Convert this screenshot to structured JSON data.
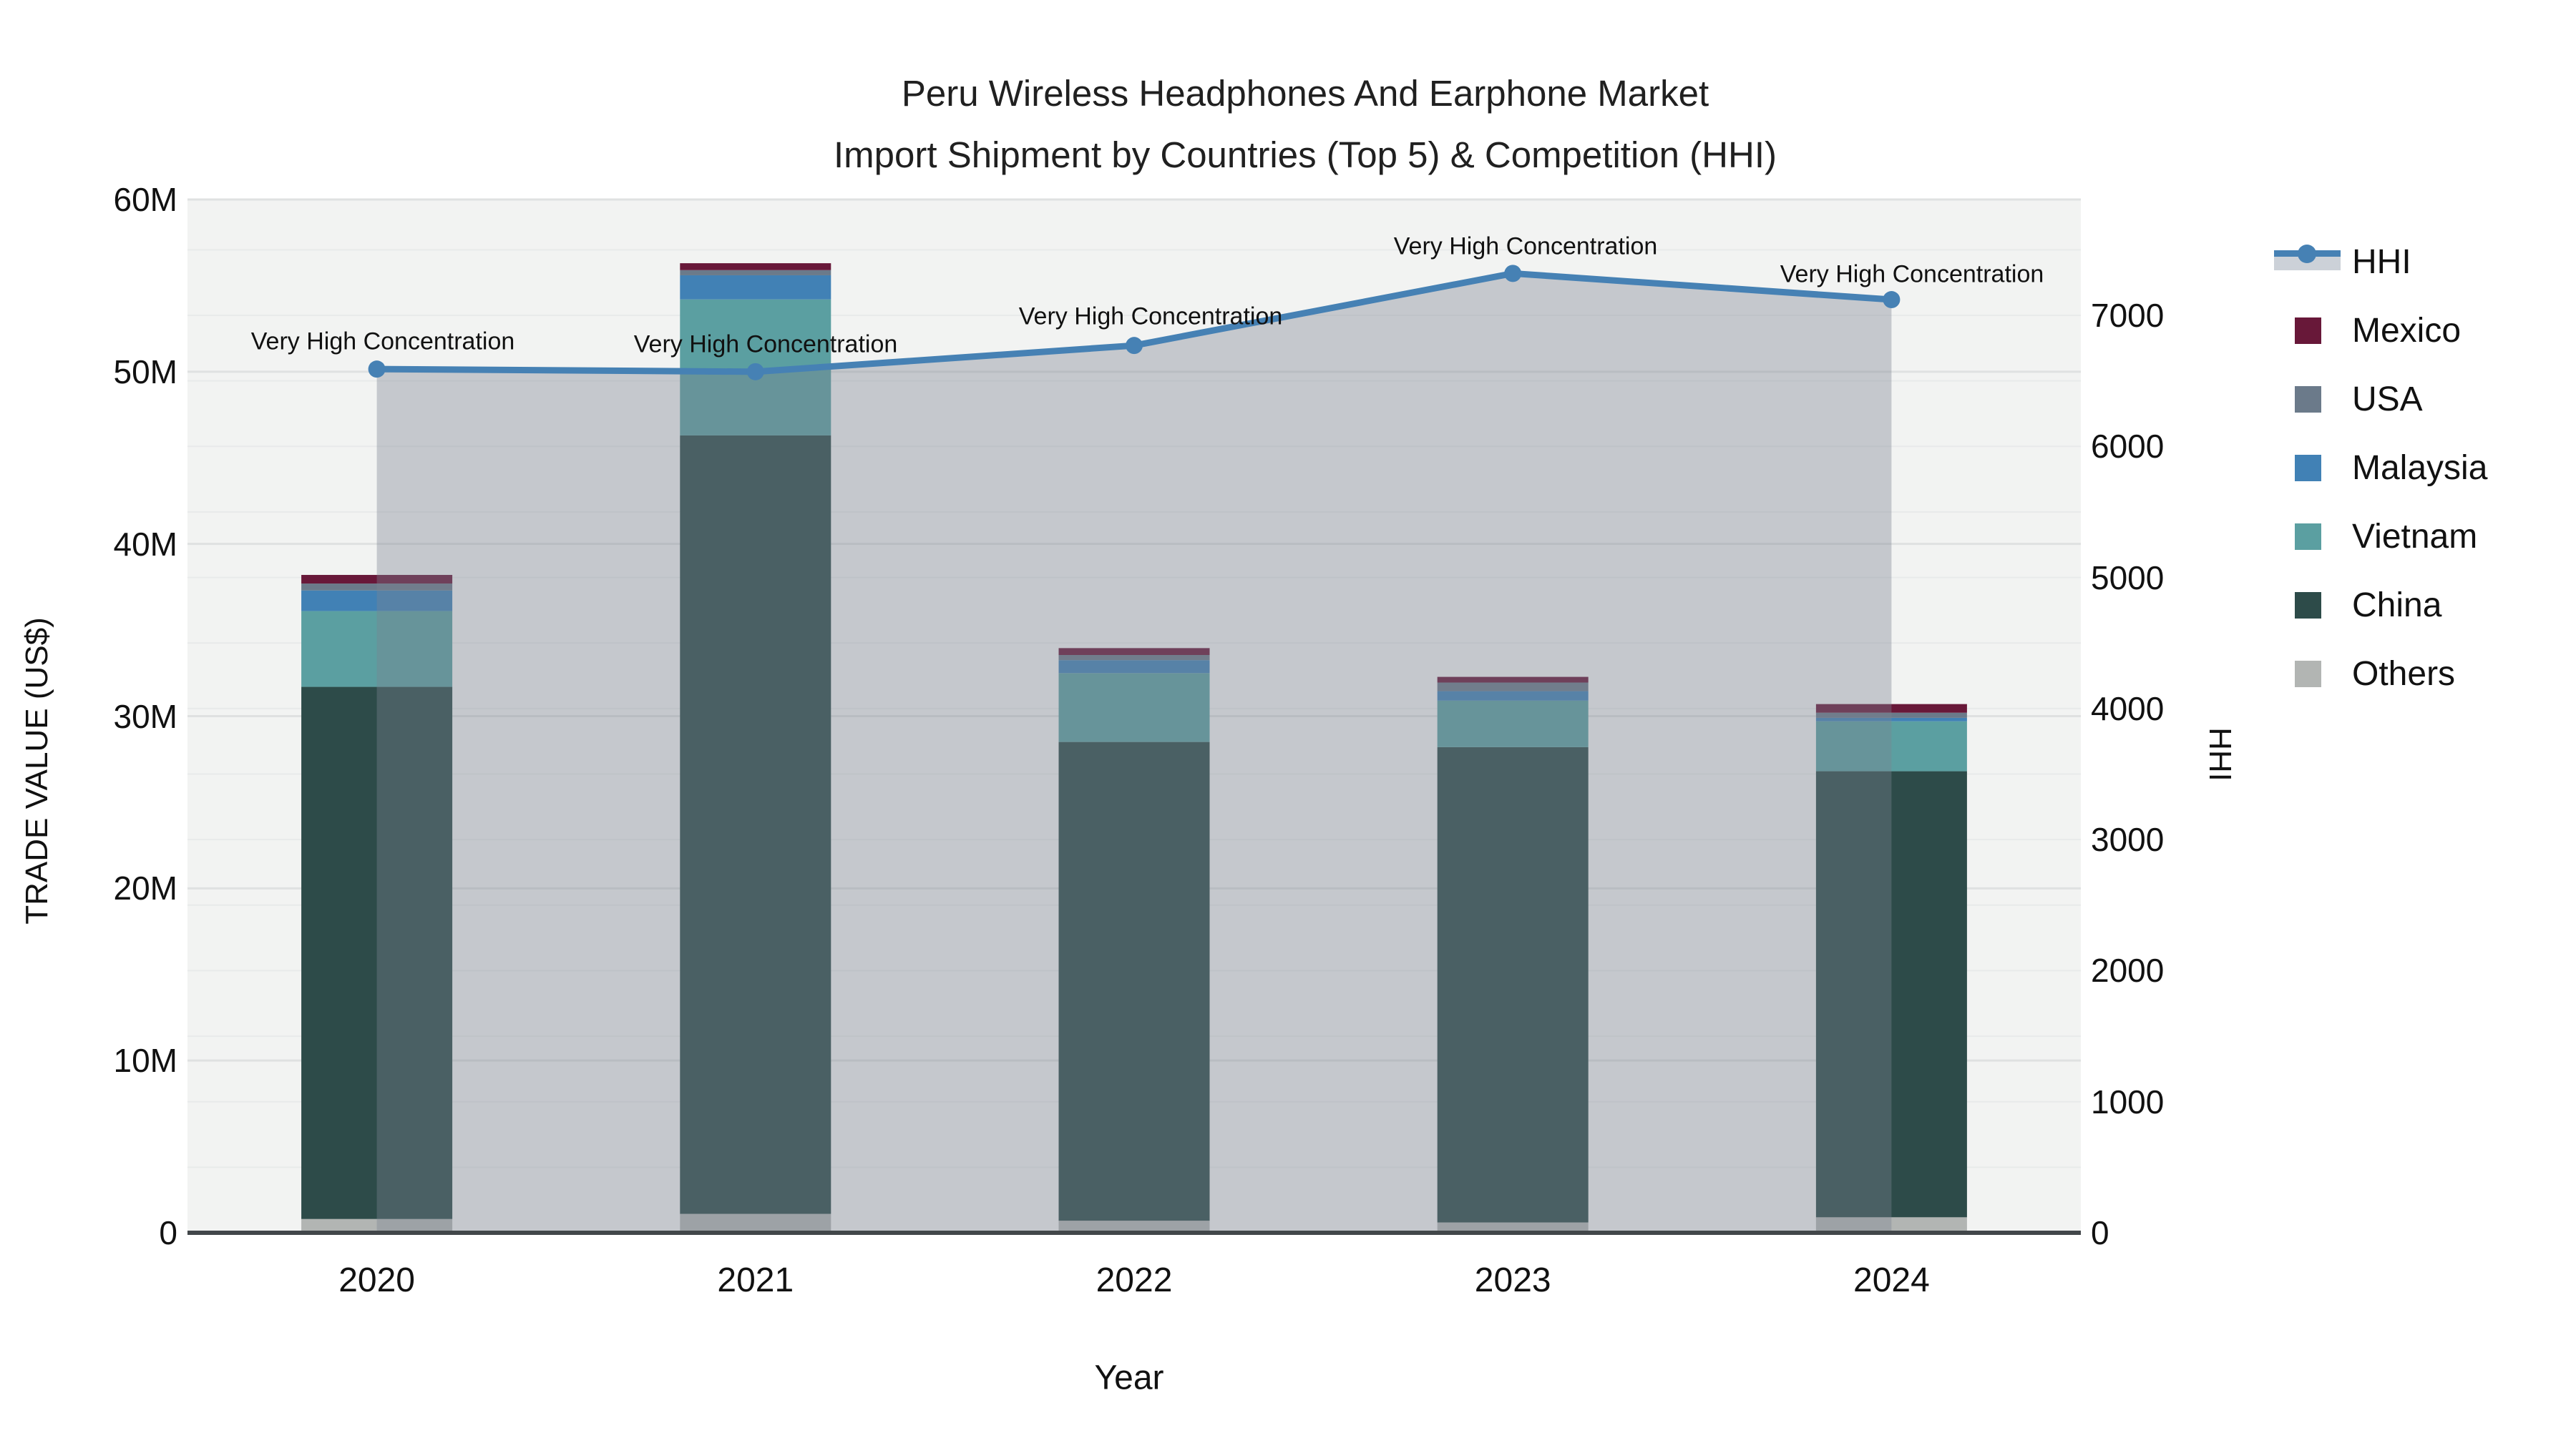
{
  "title": {
    "line1": "Peru Wireless Headphones And Earphone Market",
    "line2": "Import Shipment by Countries (Top 5) & Competition (HHI)"
  },
  "axes": {
    "x": {
      "title": "Year",
      "ticks": [
        "2020",
        "2021",
        "2022",
        "2023",
        "2024"
      ]
    },
    "y1": {
      "title": "TRADE VALUE (US$)",
      "tick_labels": [
        "0",
        "10M",
        "20M",
        "30M",
        "40M",
        "50M",
        "60M"
      ],
      "tick_values": [
        0,
        10,
        20,
        30,
        40,
        50,
        60
      ]
    },
    "y2": {
      "title": "HHI",
      "tick_labels": [
        "0",
        "1000",
        "2000",
        "3000",
        "4000",
        "5000",
        "6000",
        "7000"
      ],
      "tick_values": [
        0,
        1000,
        2000,
        3000,
        4000,
        5000,
        6000,
        7000
      ]
    }
  },
  "legend": [
    {
      "label": "HHI",
      "type": "line",
      "color": "#4681b4"
    },
    {
      "label": "Mexico",
      "type": "swatch",
      "color": "#681839"
    },
    {
      "label": "USA",
      "type": "swatch",
      "color": "#6b7a8a"
    },
    {
      "label": "Malaysia",
      "type": "swatch",
      "color": "#4181b5"
    },
    {
      "label": "Vietnam",
      "type": "swatch",
      "color": "#5b9fa1"
    },
    {
      "label": "China",
      "type": "swatch",
      "color": "#2d4b49"
    },
    {
      "label": "Others",
      "type": "swatch",
      "color": "#b2b5b3"
    }
  ],
  "annotations": [
    {
      "text": "Very High Concentration"
    },
    {
      "text": "Very High Concentration"
    },
    {
      "text": "Very High Concentration"
    },
    {
      "text": "Very High Concentration"
    },
    {
      "text": "Very High Concentration"
    }
  ],
  "chart_data": {
    "type": "bar",
    "subtype": "stacked-bars-with-line",
    "categories": [
      "2020",
      "2021",
      "2022",
      "2023",
      "2024"
    ],
    "value_unit": "million US$",
    "series": [
      {
        "name": "Others",
        "color": "#b2b5b3",
        "values": [
          0.8,
          1.1,
          0.7,
          0.6,
          0.9
        ]
      },
      {
        "name": "China",
        "color": "#2d4b49",
        "values": [
          30.9,
          45.2,
          27.8,
          27.6,
          25.9
        ]
      },
      {
        "name": "Vietnam",
        "color": "#5b9fa1",
        "values": [
          4.4,
          7.9,
          4.0,
          2.7,
          2.9
        ]
      },
      {
        "name": "Malaysia",
        "color": "#4181b5",
        "values": [
          1.2,
          1.4,
          0.75,
          0.55,
          0.2
        ]
      },
      {
        "name": "USA",
        "color": "#6b7a8a",
        "values": [
          0.4,
          0.3,
          0.3,
          0.5,
          0.3
        ]
      },
      {
        "name": "Mexico",
        "color": "#681839",
        "values": [
          0.5,
          0.4,
          0.4,
          0.33,
          0.5
        ]
      }
    ],
    "line_series": {
      "name": "HHI",
      "axis": "y2",
      "color": "#4681b4",
      "band_fill": "rgba(124,132,144,0.38)",
      "values": [
        6590,
        6570,
        6770,
        7320,
        7120
      ]
    },
    "title": "Peru Wireless Headphones And Earphone Market — Import Shipment by Countries (Top 5) & Competition (HHI)",
    "xlabel": "Year",
    "ylabel": "TRADE VALUE (US$)",
    "y2label": "HHI",
    "ylim": [
      0,
      60
    ],
    "y2lim": [
      0,
      7884
    ],
    "grid": true,
    "legend_position": "right"
  },
  "colors": {
    "plot_bg": "#f2f3f2",
    "grid_major": "#dfe1e1",
    "grid_minor": "#e8eaea",
    "axis_line": "#42474a",
    "hhi_line": "#4681b4"
  }
}
